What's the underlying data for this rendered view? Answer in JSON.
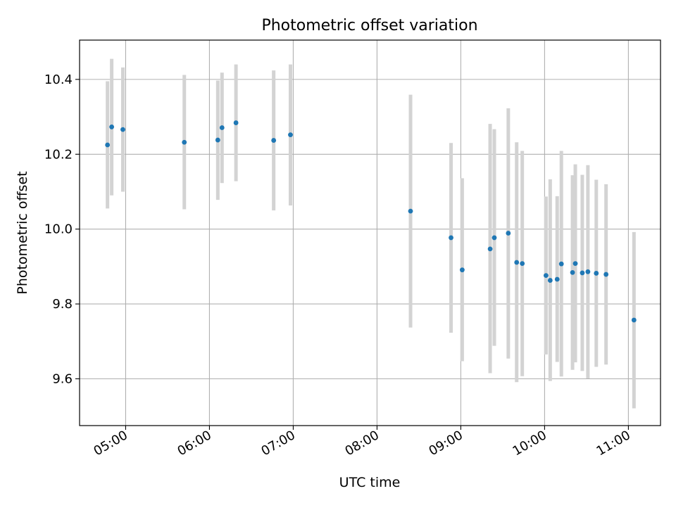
{
  "chart_data": {
    "type": "scatter",
    "title": "Photometric offset variation",
    "xlabel": "UTC time",
    "ylabel": "Photometric offset",
    "xlim": [
      "04:27",
      "11:23"
    ],
    "ylim": [
      9.475,
      10.505
    ],
    "x_ticks": [
      "05:00",
      "06:00",
      "07:00",
      "08:00",
      "09:00",
      "10:00",
      "11:00"
    ],
    "y_ticks": [
      9.6,
      9.8,
      10.0,
      10.2,
      10.4
    ],
    "grid": true,
    "colors": {
      "marker": "#1f77b4",
      "errorbar": "#d3d3d3"
    },
    "series": [
      {
        "points": [
          {
            "x": "04:47",
            "y": 10.225,
            "lo": 10.055,
            "hi": 10.395
          },
          {
            "x": "04:50",
            "y": 10.273,
            "lo": 10.09,
            "hi": 10.455
          },
          {
            "x": "04:58",
            "y": 10.266,
            "lo": 10.1,
            "hi": 10.432
          },
          {
            "x": "05:42",
            "y": 10.232,
            "lo": 10.053,
            "hi": 10.412
          },
          {
            "x": "06:06",
            "y": 10.238,
            "lo": 10.078,
            "hi": 10.397
          },
          {
            "x": "06:09",
            "y": 10.271,
            "lo": 10.123,
            "hi": 10.418
          },
          {
            "x": "06:19",
            "y": 10.284,
            "lo": 10.128,
            "hi": 10.44
          },
          {
            "x": "06:46",
            "y": 10.237,
            "lo": 10.05,
            "hi": 10.424
          },
          {
            "x": "06:58",
            "y": 10.252,
            "lo": 10.063,
            "hi": 10.44
          },
          {
            "x": "08:24",
            "y": 10.048,
            "lo": 9.737,
            "hi": 10.359
          },
          {
            "x": "08:53",
            "y": 9.977,
            "lo": 9.723,
            "hi": 10.23
          },
          {
            "x": "09:01",
            "y": 9.891,
            "lo": 9.647,
            "hi": 10.136
          },
          {
            "x": "09:21",
            "y": 9.947,
            "lo": 9.615,
            "hi": 10.281
          },
          {
            "x": "09:24",
            "y": 9.977,
            "lo": 9.688,
            "hi": 10.267
          },
          {
            "x": "09:34",
            "y": 9.989,
            "lo": 9.654,
            "hi": 10.323
          },
          {
            "x": "09:40",
            "y": 9.911,
            "lo": 9.591,
            "hi": 10.232
          },
          {
            "x": "09:44",
            "y": 9.908,
            "lo": 9.607,
            "hi": 10.209
          },
          {
            "x": "10:01",
            "y": 9.876,
            "lo": 9.665,
            "hi": 10.087
          },
          {
            "x": "10:04",
            "y": 9.863,
            "lo": 9.594,
            "hi": 10.133
          },
          {
            "x": "10:09",
            "y": 9.866,
            "lo": 9.645,
            "hi": 10.088
          },
          {
            "x": "10:12",
            "y": 9.907,
            "lo": 9.606,
            "hi": 10.209
          },
          {
            "x": "10:20",
            "y": 9.884,
            "lo": 9.624,
            "hi": 10.144
          },
          {
            "x": "10:22",
            "y": 9.908,
            "lo": 9.644,
            "hi": 10.173
          },
          {
            "x": "10:27",
            "y": 9.883,
            "lo": 9.621,
            "hi": 10.145
          },
          {
            "x": "10:31",
            "y": 9.886,
            "lo": 9.601,
            "hi": 10.171
          },
          {
            "x": "10:37",
            "y": 9.882,
            "lo": 9.632,
            "hi": 10.132
          },
          {
            "x": "10:44",
            "y": 9.879,
            "lo": 9.638,
            "hi": 10.12
          },
          {
            "x": "11:04",
            "y": 9.757,
            "lo": 9.521,
            "hi": 9.992
          }
        ]
      }
    ]
  }
}
